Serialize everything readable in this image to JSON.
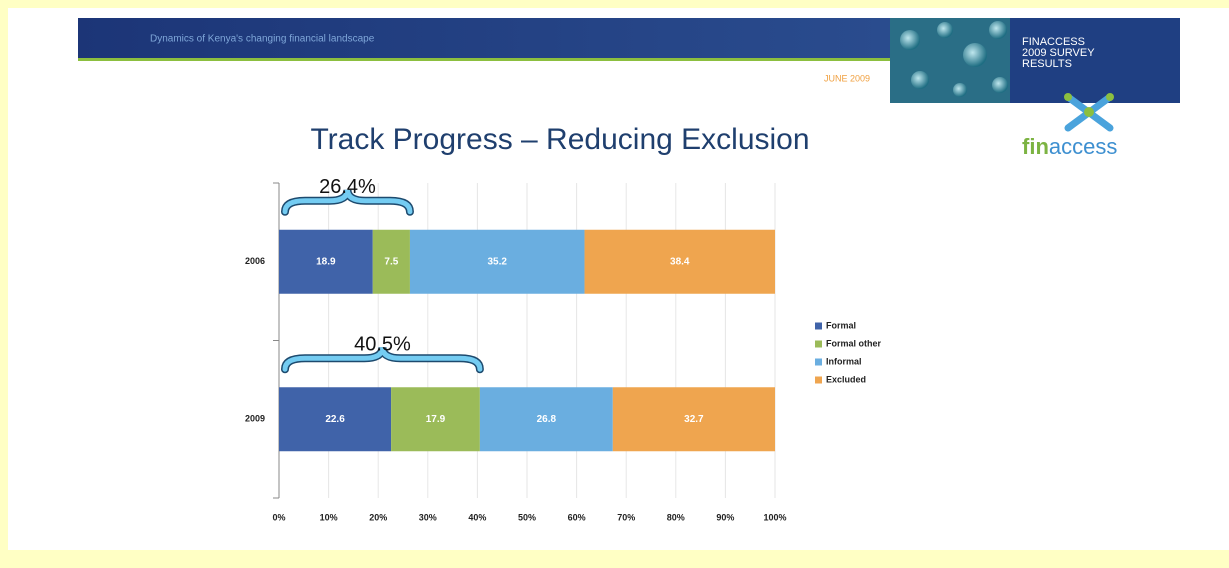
{
  "header": {
    "subtitle": "Dynamics of Kenya's changing financial landscape",
    "date": "JUNE 2009",
    "badge": [
      "FINACCESS",
      "2009 SURVEY",
      "RESULTS"
    ]
  },
  "logo": {
    "fin": "fin",
    "access": "access"
  },
  "chart_data": {
    "type": "stacked_barh",
    "title": "Track Progress – Reducing Exclusion",
    "categories": [
      "2006",
      "2009"
    ],
    "series": [
      {
        "name": "Formal",
        "color": "#4063a9",
        "values": [
          18.9,
          22.6
        ]
      },
      {
        "name": "Formal other",
        "color": "#9bbb59",
        "values": [
          7.5,
          17.9
        ]
      },
      {
        "name": "Informal",
        "color": "#6aaee0",
        "values": [
          35.2,
          26.8
        ]
      },
      {
        "name": "Excluded",
        "color": "#efa54f",
        "values": [
          38.4,
          32.7
        ]
      }
    ],
    "xlim": [
      0,
      100
    ],
    "xticks": [
      {
        "value": 0,
        "label": "0%"
      },
      {
        "value": 10,
        "label": "10%"
      },
      {
        "value": 20,
        "label": "20%"
      },
      {
        "value": 30,
        "label": "30%"
      },
      {
        "value": 40,
        "label": "40%"
      },
      {
        "value": 50,
        "label": "50%"
      },
      {
        "value": 60,
        "label": "60%"
      },
      {
        "value": 70,
        "label": "70%"
      },
      {
        "value": 80,
        "label": "80%"
      },
      {
        "value": 90,
        "label": "90%"
      },
      {
        "value": 100,
        "label": "100%"
      }
    ],
    "grid": true,
    "legend": "right",
    "annotations": [
      {
        "text": "26.4%",
        "category": "2006",
        "start": 0,
        "end": 26.4
      },
      {
        "text": "40.5%",
        "category": "2009",
        "start": 0,
        "end": 40.5
      }
    ]
  }
}
